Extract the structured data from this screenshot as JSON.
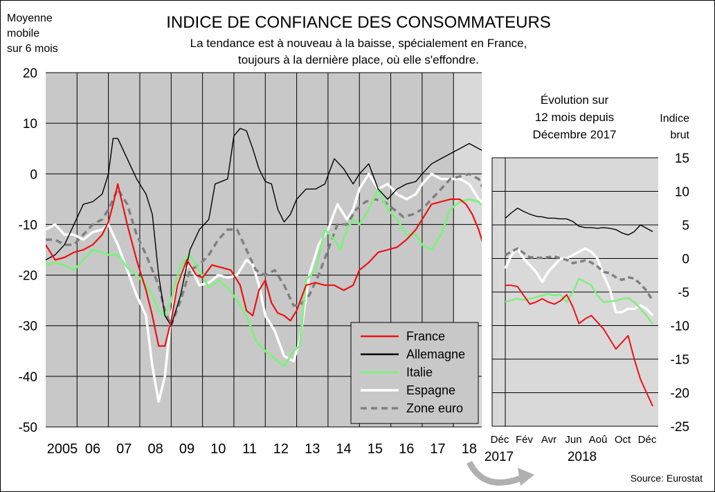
{
  "header": {
    "left_note": [
      "Moyenne",
      "mobile",
      "sur 6 mois"
    ],
    "title": "INDICE DE CONFIANCE DES CONSOMMATEURS",
    "subtitle": [
      "La tendance est à nouveau à la baisse, spécialement en France,",
      "toujours à la dernière place, où elle s'effondre."
    ],
    "source": "Source: Eurostat"
  },
  "colors": {
    "France": "#ee1111",
    "Allemagne": "#000000",
    "Italie": "#7ff07f",
    "Espagne": "#ffffff",
    "Zone euro": "#808080",
    "plot_bg": "#c8c8c8",
    "highlight_bg": "#d9d9d9"
  },
  "chart_data": [
    {
      "type": "line",
      "title": "",
      "ylim": [
        -50,
        20
      ],
      "yticks": [
        20,
        10,
        0,
        -10,
        -20,
        -30,
        -40,
        -50
      ],
      "xlim": [
        2005,
        2018.9
      ],
      "year_labels": [
        "2005",
        "06",
        "07",
        "08",
        "09",
        "10",
        "11",
        "12",
        "13",
        "14",
        "15",
        "16",
        "17",
        "18"
      ],
      "grid": true,
      "legend": "bottom-right",
      "series": [
        {
          "name": "France",
          "x": [
            2005.0,
            2005.3,
            2005.6,
            2005.9,
            2006.2,
            2006.5,
            2006.8,
            2007.0,
            2007.15,
            2007.3,
            2007.6,
            2007.9,
            2008.2,
            2008.4,
            2008.6,
            2008.8,
            2009.0,
            2009.2,
            2009.5,
            2009.8,
            2010.0,
            2010.3,
            2010.6,
            2010.9,
            2011.2,
            2011.4,
            2011.6,
            2011.8,
            2012.0,
            2012.2,
            2012.4,
            2012.6,
            2012.8,
            2013.0,
            2013.3,
            2013.6,
            2013.9,
            2014.2,
            2014.5,
            2014.8,
            2015.0,
            2015.3,
            2015.6,
            2015.9,
            2016.2,
            2016.5,
            2016.8,
            2017.0,
            2017.3,
            2017.6,
            2017.9,
            2018.2,
            2018.4,
            2018.6,
            2018.8,
            2018.95
          ],
          "y": [
            -14,
            -17,
            -16.5,
            -15.5,
            -15,
            -14,
            -12,
            -9.5,
            -6,
            -2,
            -10,
            -17,
            -23,
            -28,
            -34,
            -34,
            -29,
            -22,
            -17,
            -20,
            -20.5,
            -18,
            -18.5,
            -19,
            -22,
            -27,
            -28,
            -23,
            -21,
            -25.5,
            -27.5,
            -28,
            -29,
            -27,
            -22,
            -21.5,
            -22,
            -22,
            -23,
            -22,
            -19,
            -17.5,
            -15.5,
            -15,
            -14.5,
            -13,
            -11,
            -9,
            -6,
            -5.5,
            -5,
            -5,
            -6,
            -8,
            -11,
            -14
          ]
        },
        {
          "name": "Allemagne",
          "x": [
            2005.0,
            2005.3,
            2005.6,
            2005.9,
            2006.2,
            2006.5,
            2006.8,
            2007.0,
            2007.15,
            2007.3,
            2007.6,
            2007.9,
            2008.2,
            2008.4,
            2008.6,
            2008.8,
            2009.0,
            2009.3,
            2009.6,
            2009.9,
            2010.2,
            2010.4,
            2010.6,
            2010.8,
            2011.0,
            2011.2,
            2011.4,
            2011.6,
            2011.8,
            2012.0,
            2012.2,
            2012.4,
            2012.6,
            2012.8,
            2013.0,
            2013.3,
            2013.6,
            2013.9,
            2014.2,
            2014.5,
            2014.8,
            2015.0,
            2015.3,
            2015.6,
            2015.9,
            2016.2,
            2016.5,
            2016.8,
            2017.0,
            2017.3,
            2017.6,
            2017.9,
            2018.2,
            2018.5,
            2018.8,
            2018.95
          ],
          "y": [
            -17,
            -16,
            -14,
            -10,
            -6,
            -5.5,
            -4,
            0,
            7,
            7,
            3,
            -1,
            -4,
            -8,
            -20,
            -28,
            -30,
            -24,
            -15,
            -11,
            -9,
            -2,
            -1.5,
            -1,
            7.5,
            9,
            8.5,
            5,
            1,
            -1.5,
            -2,
            -7,
            -9.5,
            -8,
            -5,
            -3,
            -3,
            -2,
            3,
            1,
            -2,
            0,
            2,
            -3,
            -5,
            -3,
            -2,
            -1.5,
            0,
            2,
            3,
            4,
            5,
            6,
            5,
            4.5
          ]
        },
        {
          "name": "Italie",
          "x": [
            2005.0,
            2005.3,
            2005.6,
            2005.9,
            2006.2,
            2006.5,
            2006.8,
            2007.0,
            2007.3,
            2007.6,
            2007.9,
            2008.2,
            2008.4,
            2008.6,
            2008.8,
            2009.0,
            2009.3,
            2009.6,
            2009.9,
            2010.2,
            2010.5,
            2010.8,
            2011.1,
            2011.4,
            2011.7,
            2012.0,
            2012.3,
            2012.6,
            2012.9,
            2013.1,
            2013.3,
            2013.6,
            2013.9,
            2014.2,
            2014.4,
            2014.6,
            2014.8,
            2015.0,
            2015.3,
            2015.6,
            2015.9,
            2016.2,
            2016.5,
            2016.8,
            2017.0,
            2017.3,
            2017.6,
            2017.9,
            2018.2,
            2018.5,
            2018.8,
            2018.95
          ],
          "y": [
            -18,
            -17.5,
            -18,
            -19,
            -17,
            -15,
            -15.5,
            -16,
            -16,
            -18.5,
            -20,
            -22,
            -24,
            -27,
            -28,
            -25,
            -18,
            -16,
            -19,
            -22.5,
            -21,
            -22.5,
            -25,
            -28,
            -33,
            -35,
            -36.5,
            -38,
            -35,
            -34,
            -21,
            -19,
            -11,
            -13,
            -15,
            -11,
            -9,
            -10,
            -7,
            -3,
            -7,
            -9,
            -12,
            -12,
            -14,
            -15,
            -12,
            -7,
            -5.5,
            -5,
            -5.5,
            -6.5
          ]
        },
        {
          "name": "Espagne",
          "x": [
            2005.0,
            2005.3,
            2005.6,
            2005.9,
            2006.2,
            2006.5,
            2006.8,
            2007.0,
            2007.3,
            2007.6,
            2007.9,
            2008.2,
            2008.4,
            2008.6,
            2008.8,
            2009.0,
            2009.2,
            2009.4,
            2009.6,
            2009.9,
            2010.2,
            2010.5,
            2010.8,
            2011.1,
            2011.4,
            2011.6,
            2011.8,
            2012.0,
            2012.3,
            2012.6,
            2012.9,
            2013.1,
            2013.4,
            2013.7,
            2014.0,
            2014.3,
            2014.6,
            2014.8,
            2015.0,
            2015.3,
            2015.6,
            2015.9,
            2016.2,
            2016.5,
            2016.8,
            2017.0,
            2017.3,
            2017.6,
            2017.9,
            2018.2,
            2018.5,
            2018.8,
            2018.95
          ],
          "y": [
            -11,
            -10,
            -12,
            -12,
            -13,
            -11.5,
            -11,
            -10,
            -14,
            -19,
            -24,
            -28,
            -38,
            -45,
            -40,
            -28,
            -22,
            -19,
            -18,
            -22,
            -21.5,
            -20,
            -20.5,
            -20,
            -17,
            -18,
            -22,
            -28,
            -31,
            -36,
            -37,
            -33,
            -20,
            -14,
            -11,
            -6,
            -9,
            -7,
            -3,
            0,
            -3,
            -2,
            -4,
            -5,
            -4,
            -2,
            0,
            -1,
            -1,
            -1,
            -2,
            -5,
            -6
          ]
        },
        {
          "name": "Zone euro",
          "x": [
            2005.0,
            2005.3,
            2005.6,
            2005.9,
            2006.2,
            2006.5,
            2006.8,
            2007.0,
            2007.3,
            2007.6,
            2007.9,
            2008.2,
            2008.4,
            2008.6,
            2008.8,
            2009.0,
            2009.3,
            2009.6,
            2009.9,
            2010.2,
            2010.5,
            2010.8,
            2011.1,
            2011.4,
            2011.7,
            2012.0,
            2012.3,
            2012.6,
            2012.9,
            2013.1,
            2013.4,
            2013.7,
            2014.0,
            2014.3,
            2014.6,
            2014.9,
            2015.2,
            2015.5,
            2015.8,
            2016.1,
            2016.4,
            2016.7,
            2017.0,
            2017.3,
            2017.6,
            2017.9,
            2018.2,
            2018.5,
            2018.8,
            2018.95
          ],
          "y": [
            -13,
            -13,
            -14,
            -14,
            -12,
            -10,
            -9,
            -7,
            -3,
            -6,
            -12,
            -16,
            -19,
            -22,
            -27,
            -30,
            -25,
            -19,
            -18,
            -16,
            -13,
            -11,
            -11,
            -15,
            -19,
            -20,
            -19,
            -22,
            -26,
            -26,
            -24,
            -20,
            -15,
            -10,
            -10,
            -7,
            -5.5,
            -5,
            -5.5,
            -7,
            -8.5,
            -8,
            -7,
            -5,
            -3,
            -1,
            -0.5,
            0,
            -1,
            -3
          ]
        }
      ]
    },
    {
      "type": "line",
      "title": [
        "Évolution sur",
        "12 mois depuis",
        "Décembre 2017"
      ],
      "ylabel": [
        "Indice",
        "brut"
      ],
      "ylim": [
        -25,
        15
      ],
      "yticks": [
        15,
        10,
        5,
        0,
        -5,
        -10,
        -15,
        -20,
        -25
      ],
      "xlim": [
        0,
        12
      ],
      "month_labels": [
        "Déc",
        "Fév",
        "Avr",
        "Jun",
        "Aoû",
        "Oct",
        "Déc"
      ],
      "year_labels": [
        "2017",
        "2018"
      ],
      "grid": true,
      "series": [
        {
          "name": "France",
          "x": [
            0,
            0.5,
            1,
            1.5,
            2,
            2.5,
            3,
            3.5,
            4,
            4.5,
            5,
            5.5,
            6,
            6.5,
            7,
            7.5,
            8,
            8.5,
            9,
            9.5,
            10,
            10.5,
            11,
            11.5,
            12
          ],
          "y": [
            -4,
            -4,
            -4.2,
            -5.5,
            -6.8,
            -6.5,
            -6,
            -6.5,
            -6.8,
            -6.3,
            -5.4,
            -7.2,
            -9.7,
            -9,
            -8.5,
            -9.5,
            -10.5,
            -12,
            -13.5,
            -12.5,
            -11.5,
            -15,
            -18,
            -20,
            -22
          ]
        },
        {
          "name": "Allemagne",
          "x": [
            0,
            0.5,
            1,
            1.5,
            2,
            2.5,
            3,
            3.5,
            4,
            4.5,
            5,
            5.5,
            6,
            6.5,
            7,
            7.5,
            8,
            8.5,
            9,
            9.5,
            10,
            10.5,
            11,
            11.5,
            12
          ],
          "y": [
            6,
            6.8,
            7.5,
            7,
            6.6,
            6.3,
            6.2,
            6,
            6,
            5.9,
            5.9,
            5.5,
            4.8,
            4.6,
            4.6,
            4.5,
            4.6,
            4.5,
            4.3,
            3.8,
            3.5,
            4,
            5,
            4.5,
            4
          ]
        },
        {
          "name": "Italie",
          "x": [
            0,
            0.5,
            1,
            1.5,
            2,
            2.5,
            3,
            3.5,
            4,
            4.5,
            5,
            5.5,
            6,
            6.5,
            7,
            7.5,
            8,
            8.5,
            9,
            9.5,
            10,
            10.5,
            11,
            11.5,
            12
          ],
          "y": [
            -6.5,
            -6.2,
            -6,
            -6.2,
            -6,
            -5.8,
            -5.5,
            -5.3,
            -5.5,
            -5.4,
            -6.5,
            -5,
            -3,
            -3.5,
            -4,
            -5.5,
            -6.5,
            -6.4,
            -6.3,
            -6,
            -5.9,
            -6.5,
            -7.5,
            -8.5,
            -9.8
          ]
        },
        {
          "name": "Espagne",
          "x": [
            0,
            0.5,
            1,
            1.5,
            2,
            2.5,
            3,
            3.5,
            4,
            4.5,
            5,
            5.5,
            6,
            6.5,
            7,
            7.5,
            8,
            8.5,
            9,
            9.5,
            10,
            10.5,
            11,
            11.5,
            12
          ],
          "y": [
            -1.5,
            0.5,
            1.5,
            0,
            -1,
            -2,
            -3.5,
            -2,
            -1,
            0,
            0,
            0.5,
            1,
            1.5,
            1,
            0,
            -2.5,
            -4.5,
            -8,
            -8,
            -7.5,
            -7.5,
            -7,
            -7.5,
            -8.5
          ]
        },
        {
          "name": "Zone euro",
          "x": [
            0,
            0.5,
            1,
            1.5,
            2,
            2.5,
            3,
            3.5,
            4,
            4.5,
            5,
            5.5,
            6,
            6.5,
            7,
            7.5,
            8,
            8.5,
            9,
            9.5,
            10,
            10.5,
            11,
            11.5,
            12
          ],
          "y": [
            0.5,
            1,
            1.5,
            0.8,
            0.2,
            0.1,
            0.1,
            0.2,
            0.3,
            0,
            -0.2,
            -0.7,
            -0.5,
            -0.3,
            -0.6,
            -1.2,
            -2,
            -2.2,
            -2.8,
            -3.2,
            -2.8,
            -3,
            -3.8,
            -4.8,
            -6.3
          ]
        }
      ]
    }
  ],
  "legend_order": [
    "France",
    "Allemagne",
    "Italie",
    "Espagne",
    "Zone euro"
  ]
}
